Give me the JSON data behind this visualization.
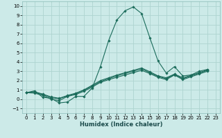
{
  "xlabel": "Humidex (Indice chaleur)",
  "ylabel": "",
  "background_color": "#cceae8",
  "grid_color": "#aed4d0",
  "line_color": "#1a6b5a",
  "xlim": [
    -0.5,
    23.5
  ],
  "ylim": [
    -1.5,
    10.5
  ],
  "xticks": [
    0,
    1,
    2,
    3,
    4,
    5,
    6,
    7,
    8,
    9,
    10,
    11,
    12,
    13,
    14,
    15,
    16,
    17,
    18,
    19,
    20,
    21,
    22,
    23
  ],
  "yticks": [
    -1,
    0,
    1,
    2,
    3,
    4,
    5,
    6,
    7,
    8,
    9,
    10
  ],
  "series": [
    [
      0.7,
      0.9,
      0.2,
      0.1,
      -0.4,
      -0.3,
      0.3,
      0.3,
      1.2,
      3.5,
      6.3,
      8.5,
      9.5,
      9.9,
      9.2,
      6.6,
      4.1,
      2.8,
      3.5,
      2.5,
      2.6,
      3.0,
      3.2
    ],
    [
      0.7,
      0.65,
      0.4,
      0.0,
      -0.15,
      0.3,
      0.5,
      0.85,
      1.3,
      1.8,
      2.1,
      2.35,
      2.6,
      2.85,
      3.1,
      2.75,
      2.35,
      2.1,
      2.6,
      2.1,
      2.4,
      2.7,
      3.0
    ],
    [
      0.7,
      0.75,
      0.5,
      0.15,
      0.05,
      0.35,
      0.6,
      0.95,
      1.4,
      1.9,
      2.2,
      2.5,
      2.75,
      3.0,
      3.25,
      2.85,
      2.45,
      2.2,
      2.65,
      2.2,
      2.5,
      2.8,
      3.1
    ],
    [
      0.7,
      0.8,
      0.55,
      0.25,
      0.1,
      0.4,
      0.65,
      1.0,
      1.5,
      2.0,
      2.3,
      2.6,
      2.85,
      3.1,
      3.35,
      2.95,
      2.5,
      2.3,
      2.7,
      2.3,
      2.55,
      2.85,
      3.15
    ]
  ],
  "x_values": [
    0,
    1,
    2,
    3,
    4,
    5,
    6,
    7,
    8,
    9,
    10,
    11,
    12,
    13,
    14,
    15,
    16,
    17,
    18,
    19,
    20,
    21,
    22
  ]
}
